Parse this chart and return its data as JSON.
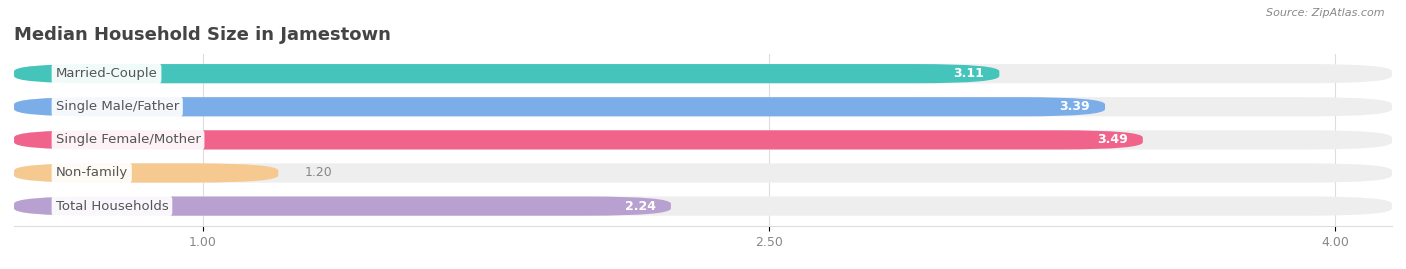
{
  "title": "Median Household Size in Jamestown",
  "source": "Source: ZipAtlas.com",
  "categories": [
    "Married-Couple",
    "Single Male/Father",
    "Single Female/Mother",
    "Non-family",
    "Total Households"
  ],
  "values": [
    3.11,
    3.39,
    3.49,
    1.2,
    2.24
  ],
  "bar_colors": [
    "#45C4BC",
    "#7BAEE8",
    "#F0648C",
    "#F5C990",
    "#B8A0D0"
  ],
  "value_label_color_inside": "#ffffff",
  "value_label_color_outside": "#888888",
  "xlim_min": 0.5,
  "xlim_max": 4.15,
  "xticks": [
    1.0,
    2.5,
    4.0
  ],
  "value_labels": [
    "3.11",
    "3.39",
    "3.49",
    "1.20",
    "2.24"
  ],
  "background_color": "#ffffff",
  "bar_bg_color": "#eeeeee",
  "label_bg_color": "#ffffff",
  "title_fontsize": 13,
  "label_fontsize": 9.5,
  "value_fontsize": 9,
  "bar_height": 0.58,
  "tick_fontsize": 9,
  "label_text_color": "#555555",
  "grid_color": "#dddddd",
  "spine_color": "#dddddd"
}
